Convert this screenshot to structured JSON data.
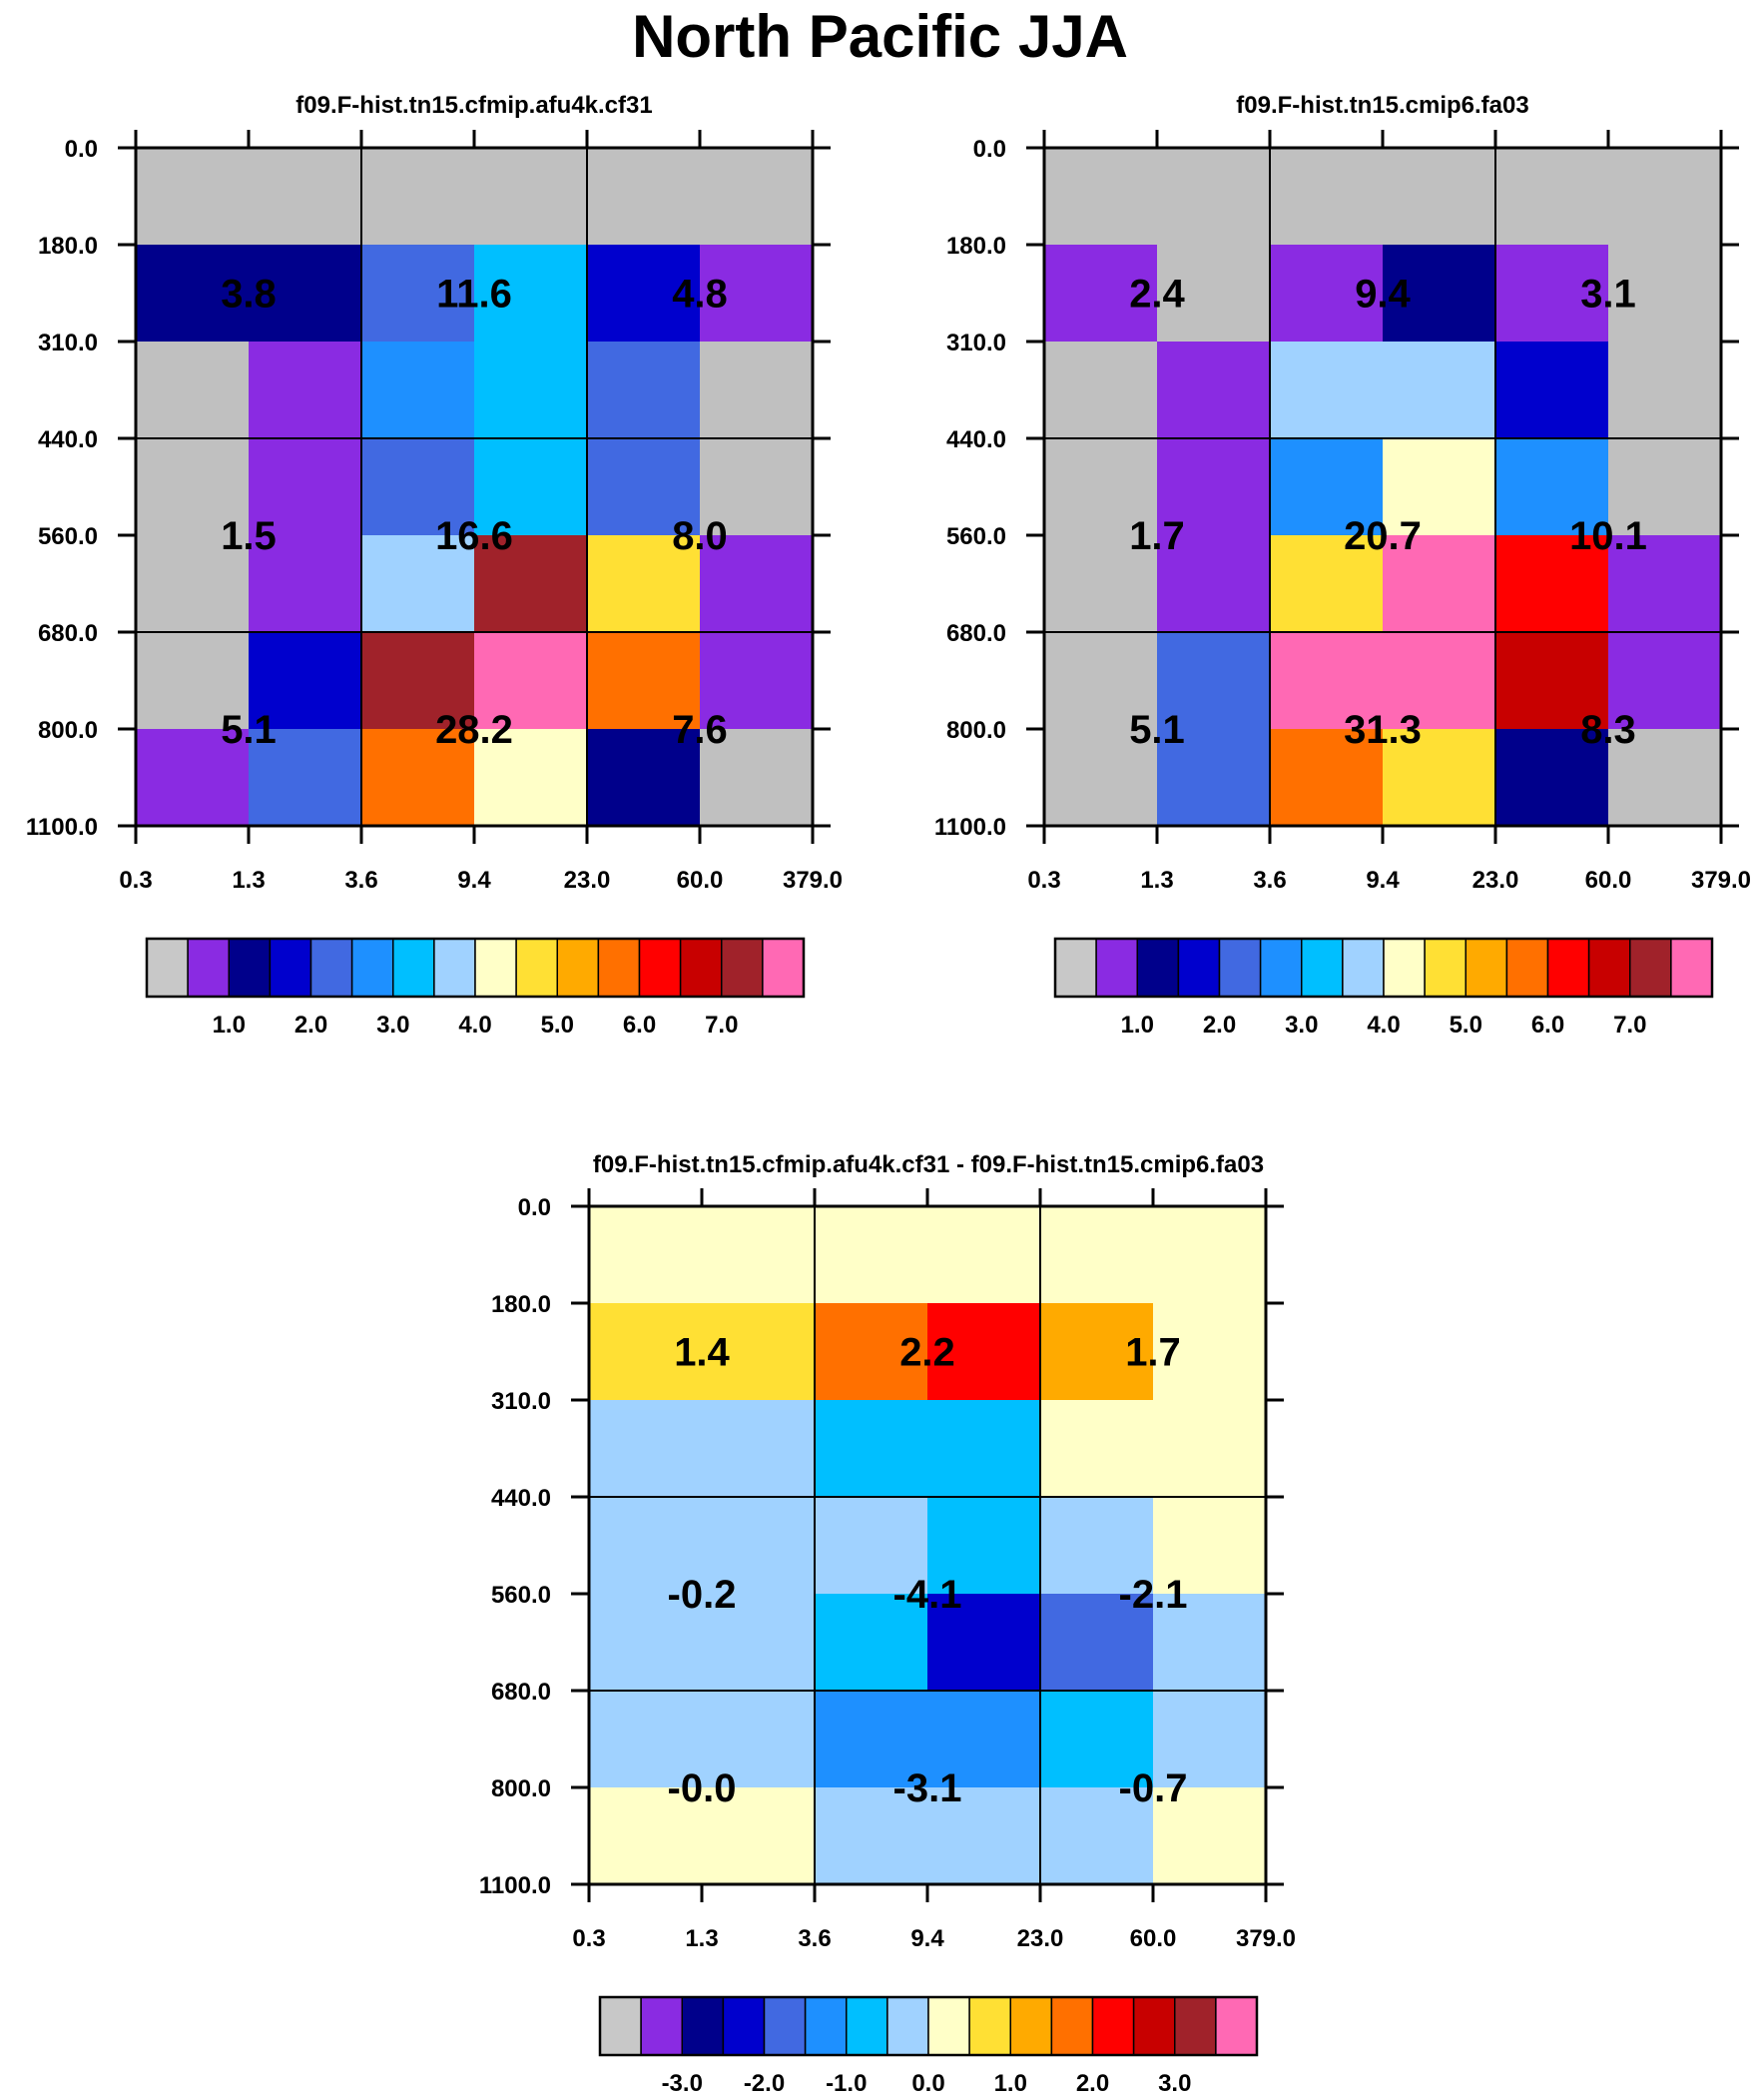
{
  "title": "North Pacific JJA",
  "chart_data": [
    {
      "type": "heatmap",
      "title": "f09.F-hist.tn15.cfmip.afu4k.cf31",
      "x_tick_labels": [
        "0.3",
        "1.3",
        "3.6",
        "9.4",
        "23.0",
        "60.0",
        "379.0"
      ],
      "y_tick_labels": [
        "0.0",
        "180.0",
        "310.0",
        "440.0",
        "560.0",
        "680.0",
        "800.0",
        "1100.0"
      ],
      "cell_colors_top_to_bottom": [
        [
          "#c0c0c0",
          "#c0c0c0",
          "#c0c0c0",
          "#c0c0c0",
          "#c0c0c0",
          "#c0c0c0"
        ],
        [
          "#00008b",
          "#00008b",
          "#4169e1",
          "#00bfff",
          "#0000cd",
          "#8a2be2"
        ],
        [
          "#c0c0c0",
          "#8a2be2",
          "#1e90ff",
          "#00bfff",
          "#4169e1",
          "#c0c0c0"
        ],
        [
          "#c0c0c0",
          "#8a2be2",
          "#4169e1",
          "#00bfff",
          "#4169e1",
          "#c0c0c0"
        ],
        [
          "#c0c0c0",
          "#8a2be2",
          "#a0d2ff",
          "#a0222a",
          "#ffe034",
          "#8a2be2"
        ],
        [
          "#c0c0c0",
          "#0000cd",
          "#a0222a",
          "#ff69b4",
          "#ff7000",
          "#8a2be2"
        ],
        [
          "#8a2be2",
          "#4169e1",
          "#ff7000",
          "#ffffc8",
          "#00008b",
          "#c0c0c0"
        ]
      ],
      "block_totals": [
        {
          "row": 0,
          "col": 0,
          "label": "3.8"
        },
        {
          "row": 0,
          "col": 1,
          "label": "11.6"
        },
        {
          "row": 0,
          "col": 2,
          "label": "4.8"
        },
        {
          "row": 1,
          "col": 0,
          "label": "1.5"
        },
        {
          "row": 1,
          "col": 1,
          "label": "16.6"
        },
        {
          "row": 1,
          "col": 2,
          "label": "8.0"
        },
        {
          "row": 2,
          "col": 0,
          "label": "5.1"
        },
        {
          "row": 2,
          "col": 1,
          "label": "28.2"
        },
        {
          "row": 2,
          "col": 2,
          "label": "7.6"
        }
      ],
      "colorbar": {
        "colors": [
          "#c8c8c8",
          "#8a2be2",
          "#00008b",
          "#0000cd",
          "#4169e1",
          "#1e90ff",
          "#00bfff",
          "#a0d2ff",
          "#ffffc8",
          "#ffe034",
          "#ffaa00",
          "#ff7000",
          "#ff0000",
          "#c80000",
          "#a0222a",
          "#ff69b4"
        ],
        "tick_labels": [
          "1.0",
          "2.0",
          "3.0",
          "4.0",
          "5.0",
          "6.0",
          "7.0"
        ],
        "tick_boundary_index": [
          2,
          4,
          6,
          8,
          10,
          12,
          14
        ]
      }
    },
    {
      "type": "heatmap",
      "title": "f09.F-hist.tn15.cmip6.fa03",
      "x_tick_labels": [
        "0.3",
        "1.3",
        "3.6",
        "9.4",
        "23.0",
        "60.0",
        "379.0"
      ],
      "y_tick_labels": [
        "0.0",
        "180.0",
        "310.0",
        "440.0",
        "560.0",
        "680.0",
        "800.0",
        "1100.0"
      ],
      "cell_colors_top_to_bottom": [
        [
          "#c0c0c0",
          "#c0c0c0",
          "#c0c0c0",
          "#c0c0c0",
          "#c0c0c0",
          "#c0c0c0"
        ],
        [
          "#8a2be2",
          "#c0c0c0",
          "#8a2be2",
          "#00008b",
          "#8a2be2",
          "#c0c0c0"
        ],
        [
          "#c0c0c0",
          "#8a2be2",
          "#a0d2ff",
          "#a0d2ff",
          "#0000cd",
          "#c0c0c0"
        ],
        [
          "#c0c0c0",
          "#8a2be2",
          "#1e90ff",
          "#ffffc8",
          "#1e90ff",
          "#c0c0c0"
        ],
        [
          "#c0c0c0",
          "#8a2be2",
          "#ffe034",
          "#ff69b4",
          "#ff0000",
          "#8a2be2"
        ],
        [
          "#c0c0c0",
          "#4169e1",
          "#ff69b4",
          "#ff69b4",
          "#c80000",
          "#8a2be2"
        ],
        [
          "#c0c0c0",
          "#4169e1",
          "#ff7000",
          "#ffe034",
          "#00008b",
          "#c0c0c0"
        ]
      ],
      "block_totals": [
        {
          "row": 0,
          "col": 0,
          "label": "2.4"
        },
        {
          "row": 0,
          "col": 1,
          "label": "9.4"
        },
        {
          "row": 0,
          "col": 2,
          "label": "3.1"
        },
        {
          "row": 1,
          "col": 0,
          "label": "1.7"
        },
        {
          "row": 1,
          "col": 1,
          "label": "20.7"
        },
        {
          "row": 1,
          "col": 2,
          "label": "10.1"
        },
        {
          "row": 2,
          "col": 0,
          "label": "5.1"
        },
        {
          "row": 2,
          "col": 1,
          "label": "31.3"
        },
        {
          "row": 2,
          "col": 2,
          "label": "8.3"
        }
      ],
      "colorbar": {
        "colors": [
          "#c8c8c8",
          "#8a2be2",
          "#00008b",
          "#0000cd",
          "#4169e1",
          "#1e90ff",
          "#00bfff",
          "#a0d2ff",
          "#ffffc8",
          "#ffe034",
          "#ffaa00",
          "#ff7000",
          "#ff0000",
          "#c80000",
          "#a0222a",
          "#ff69b4"
        ],
        "tick_labels": [
          "1.0",
          "2.0",
          "3.0",
          "4.0",
          "5.0",
          "6.0",
          "7.0"
        ],
        "tick_boundary_index": [
          2,
          4,
          6,
          8,
          10,
          12,
          14
        ]
      }
    },
    {
      "type": "heatmap",
      "title": "f09.F-hist.tn15.cfmip.afu4k.cf31 - f09.F-hist.tn15.cmip6.fa03",
      "x_tick_labels": [
        "0.3",
        "1.3",
        "3.6",
        "9.4",
        "23.0",
        "60.0",
        "379.0"
      ],
      "y_tick_labels": [
        "0.0",
        "180.0",
        "310.0",
        "440.0",
        "560.0",
        "680.0",
        "800.0",
        "1100.0"
      ],
      "cell_colors_top_to_bottom": [
        [
          "#ffffc8",
          "#ffffc8",
          "#ffffc8",
          "#ffffc8",
          "#ffffc8",
          "#ffffc8"
        ],
        [
          "#ffe034",
          "#ffe034",
          "#ff7000",
          "#ff0000",
          "#ffaa00",
          "#ffffc8"
        ],
        [
          "#a0d2ff",
          "#a0d2ff",
          "#00bfff",
          "#00bfff",
          "#ffffc8",
          "#ffffc8"
        ],
        [
          "#a0d2ff",
          "#a0d2ff",
          "#a0d2ff",
          "#00bfff",
          "#a0d2ff",
          "#ffffc8"
        ],
        [
          "#a0d2ff",
          "#a0d2ff",
          "#00bfff",
          "#0000cd",
          "#4169e1",
          "#a0d2ff"
        ],
        [
          "#a0d2ff",
          "#a0d2ff",
          "#1e90ff",
          "#1e90ff",
          "#00bfff",
          "#a0d2ff"
        ],
        [
          "#ffffc8",
          "#ffffc8",
          "#a0d2ff",
          "#a0d2ff",
          "#a0d2ff",
          "#ffffc8"
        ]
      ],
      "block_totals": [
        {
          "row": 0,
          "col": 0,
          "label": "1.4"
        },
        {
          "row": 0,
          "col": 1,
          "label": "2.2"
        },
        {
          "row": 0,
          "col": 2,
          "label": "1.7"
        },
        {
          "row": 1,
          "col": 0,
          "label": "-0.2"
        },
        {
          "row": 1,
          "col": 1,
          "label": "-4.1"
        },
        {
          "row": 1,
          "col": 2,
          "label": "-2.1"
        },
        {
          "row": 2,
          "col": 0,
          "label": "-0.0"
        },
        {
          "row": 2,
          "col": 1,
          "label": "-3.1"
        },
        {
          "row": 2,
          "col": 2,
          "label": "-0.7"
        }
      ],
      "colorbar": {
        "colors": [
          "#c8c8c8",
          "#8a2be2",
          "#00008b",
          "#0000cd",
          "#4169e1",
          "#1e90ff",
          "#00bfff",
          "#a0d2ff",
          "#ffffc8",
          "#ffe034",
          "#ffaa00",
          "#ff7000",
          "#ff0000",
          "#c80000",
          "#a0222a",
          "#ff69b4"
        ],
        "tick_labels": [
          "-3.0",
          "-2.0",
          "-1.0",
          "0.0",
          "1.0",
          "2.0",
          "3.0"
        ],
        "tick_boundary_index": [
          2,
          4,
          6,
          8,
          10,
          12,
          14
        ]
      }
    }
  ]
}
